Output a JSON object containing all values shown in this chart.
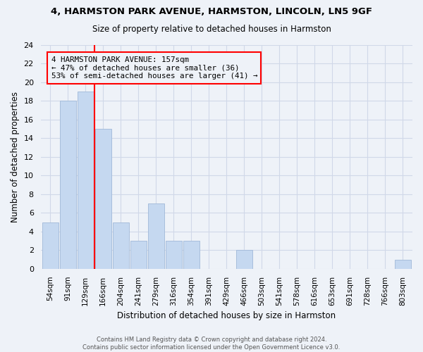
{
  "title1": "4, HARMSTON PARK AVENUE, HARMSTON, LINCOLN, LN5 9GF",
  "title2": "Size of property relative to detached houses in Harmston",
  "xlabel": "Distribution of detached houses by size in Harmston",
  "ylabel": "Number of detached properties",
  "footnote": "Contains HM Land Registry data © Crown copyright and database right 2024.\nContains public sector information licensed under the Open Government Licence v3.0.",
  "bin_labels": [
    "54sqm",
    "91sqm",
    "129sqm",
    "166sqm",
    "204sqm",
    "241sqm",
    "279sqm",
    "316sqm",
    "354sqm",
    "391sqm",
    "429sqm",
    "466sqm",
    "503sqm",
    "541sqm",
    "578sqm",
    "616sqm",
    "653sqm",
    "691sqm",
    "728sqm",
    "766sqm",
    "803sqm"
  ],
  "bar_heights": [
    5,
    18,
    19,
    15,
    5,
    3,
    7,
    3,
    3,
    0,
    0,
    2,
    0,
    0,
    0,
    0,
    0,
    0,
    0,
    0,
    1
  ],
  "bar_color": "#c5d8f0",
  "bar_edge_color": "#a0b8d8",
  "grid_color": "#d0d8e8",
  "property_line_label": "4 HARMSTON PARK AVENUE: 157sqm",
  "annotation_line1": "← 47% of detached houses are smaller (36)",
  "annotation_line2": "53% of semi-detached houses are larger (41) →",
  "ylim": [
    0,
    24
  ],
  "yticks": [
    0,
    2,
    4,
    6,
    8,
    10,
    12,
    14,
    16,
    18,
    20,
    22,
    24
  ],
  "background_color": "#eef2f8"
}
